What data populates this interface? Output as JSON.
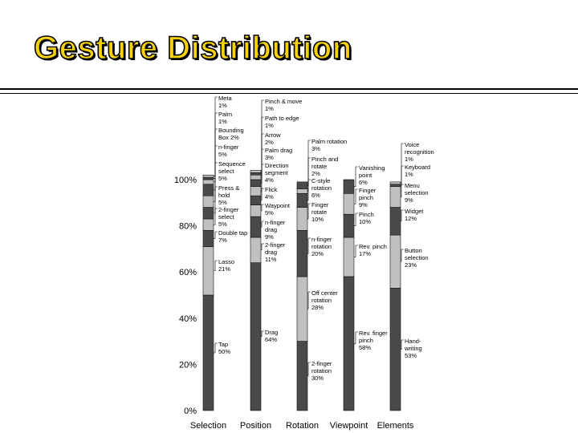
{
  "page": {
    "title": "Gesture Distribution"
  },
  "colors": {
    "title_fill": "#f5d20c",
    "dark": "#4a4a4a",
    "light": "#c0c0c0"
  },
  "chart_data": {
    "type": "bar",
    "stacked": true,
    "title": "Gesture Distribution",
    "categories": [
      "Selection",
      "Position",
      "Rotation",
      "Viewpoint",
      "Elements"
    ],
    "ylim": [
      0,
      100
    ],
    "yticks": [
      "0%",
      "20%",
      "40%",
      "60%",
      "80%",
      "100%"
    ],
    "stacks": [
      {
        "category": "Selection",
        "segments": [
          {
            "label": "Tap",
            "value": 50
          },
          {
            "label": "Lasso",
            "value": 21
          },
          {
            "label": "Double tap",
            "value": 7
          },
          {
            "label": "2-finger select",
            "value": 5
          },
          {
            "label": "Press & hold",
            "value": 5
          },
          {
            "label": "Sequence select",
            "value": 5
          },
          {
            "label": "n-finger",
            "value": 5
          },
          {
            "label": "Bounding Box",
            "value": 2
          },
          {
            "label": "Palm",
            "value": 1
          },
          {
            "label": "Meta",
            "value": 1
          }
        ]
      },
      {
        "category": "Position",
        "segments": [
          {
            "label": "Drag",
            "value": 64
          },
          {
            "label": "2-finger drag",
            "value": 11
          },
          {
            "label": "n-finger drag",
            "value": 9
          },
          {
            "label": "Waypoint",
            "value": 5
          },
          {
            "label": "Flick",
            "value": 4
          },
          {
            "label": "Direction segment",
            "value": 4
          },
          {
            "label": "Palm drag",
            "value": 3
          },
          {
            "label": "Arrow",
            "value": 2
          },
          {
            "label": "Path to edge",
            "value": 1
          },
          {
            "label": "Pinch & move",
            "value": 1
          }
        ]
      },
      {
        "category": "Rotation",
        "segments": [
          {
            "label": "2-finger rotation",
            "value": 30
          },
          {
            "label": "Off center rotation",
            "value": 28
          },
          {
            "label": "n-finger rotation",
            "value": 20
          },
          {
            "label": "Finger rotate",
            "value": 10
          },
          {
            "label": "C-style rotation",
            "value": 6
          },
          {
            "label": "Pinch and rotate",
            "value": 2
          },
          {
            "label": "Palm rotation",
            "value": 3
          }
        ]
      },
      {
        "category": "Viewpoint",
        "segments": [
          {
            "label": "Rev. finger pinch",
            "value": 58
          },
          {
            "label": "Rev. pinch",
            "value": 17
          },
          {
            "label": "Pinch",
            "value": 10
          },
          {
            "label": "Finger pinch",
            "value": 9
          },
          {
            "label": "Vanishing point",
            "value": 6
          }
        ]
      },
      {
        "category": "Elements",
        "segments": [
          {
            "label": "Hand-writing",
            "value": 53
          },
          {
            "label": "Button selection",
            "value": 23
          },
          {
            "label": "Widget",
            "value": 12
          },
          {
            "label": "Menu selection",
            "value": 9
          },
          {
            "label": "Keyboard",
            "value": 1
          },
          {
            "label": "Voice recognition",
            "value": 1
          }
        ]
      }
    ],
    "annotations": [
      {
        "category": "Selection",
        "label": "Meta",
        "lines": [
          "Meta",
          "1%"
        ]
      },
      {
        "category": "Selection",
        "label": "Palm",
        "lines": [
          "Palm",
          "1%"
        ]
      },
      {
        "category": "Selection",
        "label": "Bounding Box",
        "lines": [
          "Bounding",
          "Box  2%"
        ]
      },
      {
        "category": "Selection",
        "label": "n-finger",
        "lines": [
          "n-finger",
          "5%"
        ]
      },
      {
        "category": "Selection",
        "label": "Sequence select",
        "lines": [
          "Sequence",
          "select",
          "5%"
        ]
      },
      {
        "category": "Selection",
        "label": "Press & hold",
        "lines": [
          "Press &",
          "hold",
          "5%"
        ]
      },
      {
        "category": "Selection",
        "label": "2-finger select",
        "lines": [
          "2-finger",
          "select",
          "5%"
        ]
      },
      {
        "category": "Selection",
        "label": "Double tap",
        "lines": [
          "Double tap",
          "7%"
        ]
      },
      {
        "category": "Selection",
        "label": "Lasso",
        "lines": [
          "Lasso",
          "21%"
        ]
      },
      {
        "category": "Selection",
        "label": "Tap",
        "lines": [
          "Tap",
          "50%"
        ]
      },
      {
        "category": "Position",
        "label": "Pinch & move",
        "lines": [
          "Pinch & move",
          "1%"
        ]
      },
      {
        "category": "Position",
        "label": "Path to edge",
        "lines": [
          "Path to edge",
          "1%"
        ]
      },
      {
        "category": "Position",
        "label": "Arrow",
        "lines": [
          "Arrow",
          "2%"
        ]
      },
      {
        "category": "Position",
        "label": "Palm drag",
        "lines": [
          "Palm drag",
          "3%"
        ]
      },
      {
        "category": "Position",
        "label": "Direction segment",
        "lines": [
          "Direction",
          "segment",
          "4%"
        ]
      },
      {
        "category": "Position",
        "label": "Flick",
        "lines": [
          "Flick",
          "4%"
        ]
      },
      {
        "category": "Position",
        "label": "Waypoint",
        "lines": [
          "Waypoint",
          "5%"
        ]
      },
      {
        "category": "Position",
        "label": "n-finger drag",
        "lines": [
          "n-finger",
          "drag",
          "9%"
        ]
      },
      {
        "category": "Position",
        "label": "2-finger drag",
        "lines": [
          "2-finger",
          "drag",
          "11%"
        ]
      },
      {
        "category": "Position",
        "label": "Drag",
        "lines": [
          "Drag",
          "64%"
        ]
      },
      {
        "category": "Rotation",
        "label": "Palm rotation",
        "lines": [
          "Palm rotation",
          "3%"
        ]
      },
      {
        "category": "Rotation",
        "label": "Pinch and rotate",
        "lines": [
          "Pinch and",
          "rotate",
          "2%"
        ]
      },
      {
        "category": "Rotation",
        "label": "C-style rotation",
        "lines": [
          "C-style",
          "rotation",
          "6%"
        ]
      },
      {
        "category": "Rotation",
        "label": "Finger rotate",
        "lines": [
          "Finger",
          "rotate",
          "10%"
        ]
      },
      {
        "category": "Rotation",
        "label": "n-finger rotation",
        "lines": [
          "n-finger",
          "rotation",
          "20%"
        ]
      },
      {
        "category": "Rotation",
        "label": "Off center rotation",
        "lines": [
          "Off center",
          "rotation",
          "28%"
        ]
      },
      {
        "category": "Rotation",
        "label": "2-finger rotation",
        "lines": [
          "2-finger",
          "rotation",
          "30%"
        ]
      },
      {
        "category": "Viewpoint",
        "label": "Vanishing point",
        "lines": [
          "Vanishing",
          "point",
          "6%"
        ]
      },
      {
        "category": "Viewpoint",
        "label": "Finger pinch",
        "lines": [
          "Finger",
          "pinch",
          "9%"
        ]
      },
      {
        "category": "Viewpoint",
        "label": "Pinch",
        "lines": [
          "Pinch",
          "10%"
        ]
      },
      {
        "category": "Viewpoint",
        "label": "Rev. pinch",
        "lines": [
          "Rev. pinch",
          "17%"
        ]
      },
      {
        "category": "Viewpoint",
        "label": "Rev. finger pinch",
        "lines": [
          "Rev. finger",
          "pinch",
          "58%"
        ]
      },
      {
        "category": "Elements",
        "label": "Voice recognition",
        "lines": [
          "Voice",
          "recognition",
          "1%"
        ]
      },
      {
        "category": "Elements",
        "label": "Keyboard",
        "lines": [
          "Keyboard",
          "1%"
        ]
      },
      {
        "category": "Elements",
        "label": "Menu selection",
        "lines": [
          "Menu",
          "selection",
          "9%"
        ]
      },
      {
        "category": "Elements",
        "label": "Widget",
        "lines": [
          "Widget",
          "12%"
        ]
      },
      {
        "category": "Elements",
        "label": "Button selection",
        "lines": [
          "Button",
          "selection",
          "23%"
        ]
      },
      {
        "category": "Elements",
        "label": "Hand-writing",
        "lines": [
          "Hand-",
          "writing",
          "53%"
        ]
      }
    ]
  }
}
